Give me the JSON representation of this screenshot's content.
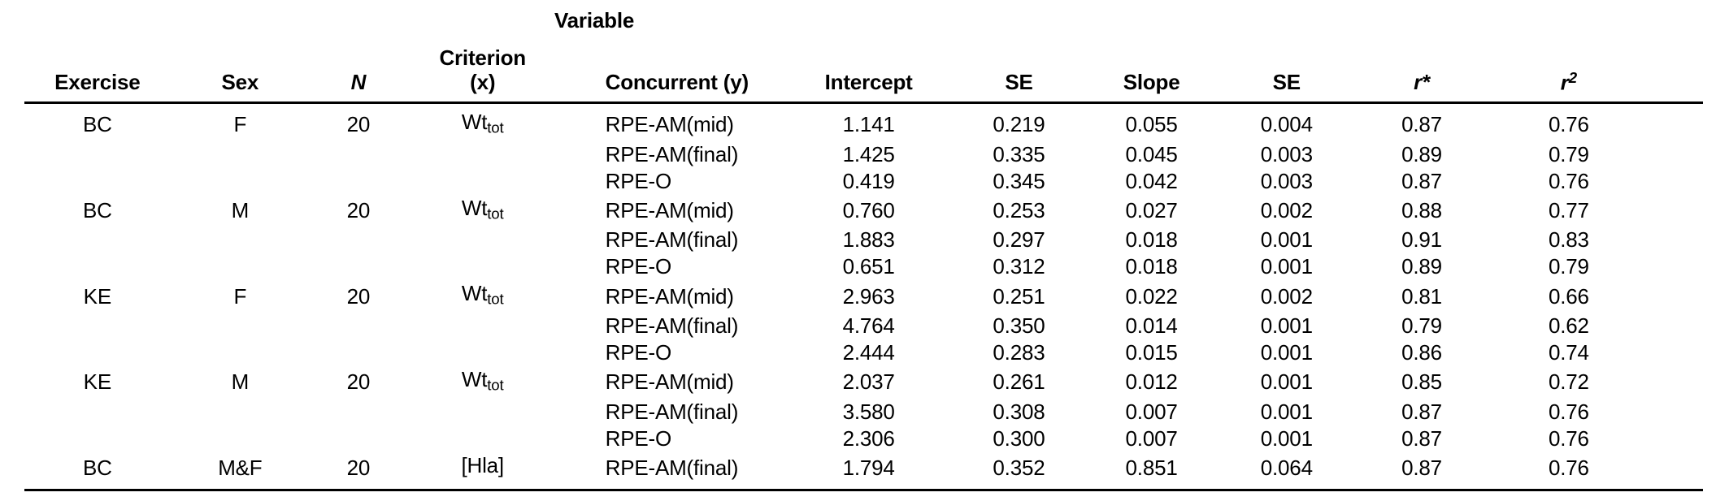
{
  "colors": {
    "background": "#ffffff",
    "text": "#000000",
    "rule": "#000000"
  },
  "table": {
    "spanner": "Variable",
    "header": {
      "exercise": "Exercise",
      "sex": "Sex",
      "n": "N",
      "criterion_line1": "Criterion",
      "criterion_line2": "(x)",
      "concurrent": "Concurrent (y)",
      "intercept": "Intercept",
      "se1": "SE",
      "slope": "Slope",
      "se2": "SE",
      "r_base": "r",
      "r_mark": "*",
      "r2_base": "r",
      "r2_sup": "2"
    },
    "rows": [
      {
        "exercise": "BC",
        "sex": "F",
        "n": "20",
        "criterion_base": "Wt",
        "criterion_sub": "tot",
        "concurrent": "RPE-AM(mid)",
        "intercept": "1.141",
        "se1": "0.219",
        "slope": "0.055",
        "se2": "0.004",
        "r": "0.87",
        "r2": "0.76"
      },
      {
        "exercise": "",
        "sex": "",
        "n": "",
        "criterion_base": "",
        "criterion_sub": "",
        "concurrent": "RPE-AM(final)",
        "intercept": "1.425",
        "se1": "0.335",
        "slope": "0.045",
        "se2": "0.003",
        "r": "0.89",
        "r2": "0.79"
      },
      {
        "exercise": "",
        "sex": "",
        "n": "",
        "criterion_base": "",
        "criterion_sub": "",
        "concurrent": "RPE-O",
        "intercept": "0.419",
        "se1": "0.345",
        "slope": "0.042",
        "se2": "0.003",
        "r": "0.87",
        "r2": "0.76"
      },
      {
        "exercise": "BC",
        "sex": "M",
        "n": "20",
        "criterion_base": "Wt",
        "criterion_sub": "tot",
        "concurrent": "RPE-AM(mid)",
        "intercept": "0.760",
        "se1": "0.253",
        "slope": "0.027",
        "se2": "0.002",
        "r": "0.88",
        "r2": "0.77"
      },
      {
        "exercise": "",
        "sex": "",
        "n": "",
        "criterion_base": "",
        "criterion_sub": "",
        "concurrent": "RPE-AM(final)",
        "intercept": "1.883",
        "se1": "0.297",
        "slope": "0.018",
        "se2": "0.001",
        "r": "0.91",
        "r2": "0.83"
      },
      {
        "exercise": "",
        "sex": "",
        "n": "",
        "criterion_base": "",
        "criterion_sub": "",
        "concurrent": "RPE-O",
        "intercept": "0.651",
        "se1": "0.312",
        "slope": "0.018",
        "se2": "0.001",
        "r": "0.89",
        "r2": "0.79"
      },
      {
        "exercise": "KE",
        "sex": "F",
        "n": "20",
        "criterion_base": "Wt",
        "criterion_sub": "tot",
        "concurrent": "RPE-AM(mid)",
        "intercept": "2.963",
        "se1": "0.251",
        "slope": "0.022",
        "se2": "0.002",
        "r": "0.81",
        "r2": "0.66"
      },
      {
        "exercise": "",
        "sex": "",
        "n": "",
        "criterion_base": "",
        "criterion_sub": "",
        "concurrent": "RPE-AM(final)",
        "intercept": "4.764",
        "se1": "0.350",
        "slope": "0.014",
        "se2": "0.001",
        "r": "0.79",
        "r2": "0.62"
      },
      {
        "exercise": "",
        "sex": "",
        "n": "",
        "criterion_base": "",
        "criterion_sub": "",
        "concurrent": "RPE-O",
        "intercept": "2.444",
        "se1": "0.283",
        "slope": "0.015",
        "se2": "0.001",
        "r": "0.86",
        "r2": "0.74"
      },
      {
        "exercise": "KE",
        "sex": "M",
        "n": "20",
        "criterion_base": "Wt",
        "criterion_sub": "tot",
        "concurrent": "RPE-AM(mid)",
        "intercept": "2.037",
        "se1": "0.261",
        "slope": "0.012",
        "se2": "0.001",
        "r": "0.85",
        "r2": "0.72"
      },
      {
        "exercise": "",
        "sex": "",
        "n": "",
        "criterion_base": "",
        "criterion_sub": "",
        "concurrent": "RPE-AM(final)",
        "intercept": "3.580",
        "se1": "0.308",
        "slope": "0.007",
        "se2": "0.001",
        "r": "0.87",
        "r2": "0.76"
      },
      {
        "exercise": "",
        "sex": "",
        "n": "",
        "criterion_base": "",
        "criterion_sub": "",
        "concurrent": "RPE-O",
        "intercept": "2.306",
        "se1": "0.300",
        "slope": "0.007",
        "se2": "0.001",
        "r": "0.87",
        "r2": "0.76"
      },
      {
        "exercise": "BC",
        "sex": "M&F",
        "n": "20",
        "criterion_base": "[Hla]",
        "criterion_sub": "",
        "concurrent": "RPE-AM(final)",
        "intercept": "1.794",
        "se1": "0.352",
        "slope": "0.851",
        "se2": "0.064",
        "r": "0.87",
        "r2": "0.76"
      }
    ]
  }
}
